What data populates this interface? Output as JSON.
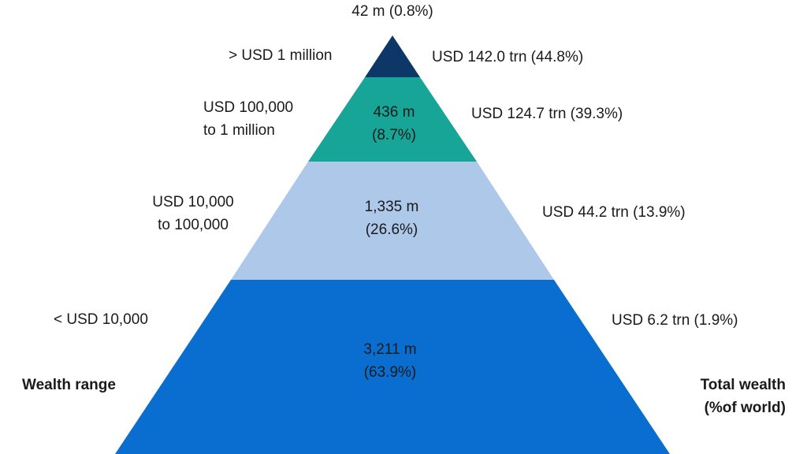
{
  "apex_label": "42 m (0.8%)",
  "tiers": [
    {
      "range": [
        "> USD 1 million"
      ],
      "wealth": "USD 142.0 trn (44.8%)"
    },
    {
      "range": [
        "USD 100,000",
        "to 1 million"
      ],
      "population": [
        "436 m",
        "(8.7%)"
      ],
      "wealth": "USD 124.7 trn (39.3%)"
    },
    {
      "range": [
        "USD 10,000",
        "to 100,000"
      ],
      "population": [
        "1,335 m",
        "(26.6%)"
      ],
      "wealth": "USD 44.2 trn (13.9%)"
    },
    {
      "range": [
        "< USD 10,000"
      ],
      "population": [
        "3,211 m",
        "(63.9%)"
      ],
      "wealth": "USD 6.2 trn (1.9%)"
    }
  ],
  "legend": {
    "left": "Wealth range",
    "right": [
      "Total wealth",
      "(%of world)"
    ]
  }
}
